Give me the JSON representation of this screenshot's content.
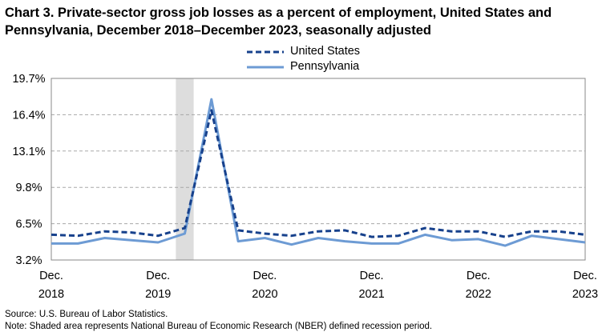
{
  "title": "Chart 3. Private-sector gross job losses as a percent of employment, United States and Pennsylvania, December 2018–December 2023, seasonally adjusted",
  "colors": {
    "us": "#17418c",
    "pa": "#6d9bd4",
    "recession": "#dddddd",
    "grid": "#a8a8a8"
  },
  "footer": {
    "source": "Source: U.S. Bureau of Labor Statistics.",
    "note": "Note: Shaded area represents National Bureau of Economic Research (NBER) defined  recession period."
  },
  "chart_data": {
    "type": "line",
    "title": "Chart 3. Private-sector gross job losses as a percent of employment, United States and Pennsylvania, December 2018–December 2023, seasonally adjusted",
    "xlabel": "",
    "ylabel": "",
    "ylim": [
      3.2,
      19.7
    ],
    "yticks": [
      "3.2%",
      "6.5%",
      "9.8%",
      "13.1%",
      "16.4%",
      "19.7%"
    ],
    "ytick_values": [
      3.2,
      6.5,
      9.8,
      13.1,
      16.4,
      19.7
    ],
    "xtick_labels": [
      {
        "month": "Dec.",
        "year": "2018"
      },
      {
        "month": "Dec.",
        "year": "2019"
      },
      {
        "month": "Dec.",
        "year": "2020"
      },
      {
        "month": "Dec.",
        "year": "2021"
      },
      {
        "month": "Dec.",
        "year": "2022"
      },
      {
        "month": "Dec.",
        "year": "2023"
      }
    ],
    "x": [
      "Dec 2018",
      "Mar 2019",
      "Jun 2019",
      "Sep 2019",
      "Dec 2019",
      "Mar 2020",
      "Jun 2020",
      "Sep 2020",
      "Dec 2020",
      "Mar 2021",
      "Jun 2021",
      "Sep 2021",
      "Dec 2021",
      "Mar 2022",
      "Jun 2022",
      "Sep 2022",
      "Dec 2022",
      "Mar 2023",
      "Jun 2023",
      "Sep 2023",
      "Dec 2023"
    ],
    "recession": [
      "Feb 2020",
      "Apr 2020"
    ],
    "grid": true,
    "legend_position": "top-center",
    "series": [
      {
        "name": "United States",
        "style": "dashed",
        "values": [
          5.5,
          5.4,
          5.8,
          5.7,
          5.4,
          6.1,
          16.8,
          5.9,
          5.6,
          5.4,
          5.8,
          5.9,
          5.3,
          5.4,
          6.1,
          5.8,
          5.8,
          5.3,
          5.8,
          5.8,
          5.5
        ]
      },
      {
        "name": "Pennsylvania",
        "style": "solid",
        "values": [
          4.7,
          4.7,
          5.2,
          5.0,
          4.8,
          5.6,
          17.8,
          4.9,
          5.2,
          4.6,
          5.2,
          4.9,
          4.7,
          4.7,
          5.5,
          5.0,
          5.1,
          4.5,
          5.4,
          5.1,
          4.8
        ]
      }
    ]
  }
}
